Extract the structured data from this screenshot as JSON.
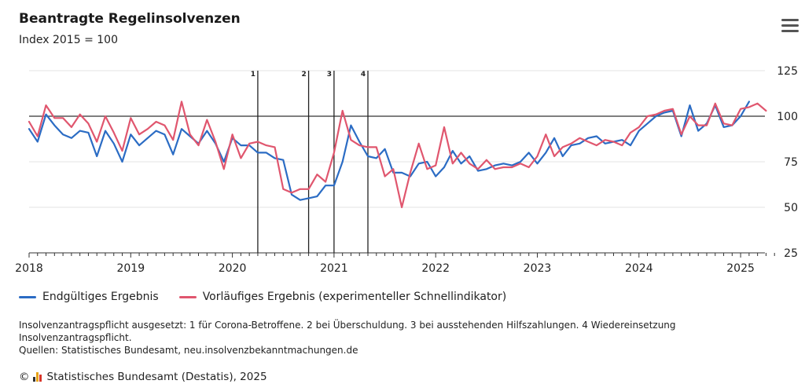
{
  "header": {
    "title": "Beantragte Regelinsolvenzen",
    "subtitle": "Index 2015 = 100",
    "menu_icon": "hamburger-menu-icon"
  },
  "colors": {
    "blue": "#2b6cc4",
    "red": "#e0566e",
    "logo_bars": [
      "#333333",
      "#e8a317",
      "#d9362b"
    ]
  },
  "chart_data": {
    "type": "line",
    "title": "Beantragte Regelinsolvenzen",
    "subtitle": "Index 2015 = 100",
    "xlabel": "",
    "ylabel": "",
    "x_start": "2018-01",
    "x_tick_labels": [
      "2018",
      "2019",
      "2020",
      "2021",
      "2022",
      "2023",
      "2024",
      "2025"
    ],
    "y_tick_labels": [
      "25",
      "50",
      "75",
      "100",
      "125"
    ],
    "y_ticks": [
      25,
      50,
      75,
      100,
      125
    ],
    "ylim": [
      25,
      125
    ],
    "reference_line": 100,
    "grid": true,
    "events": [
      {
        "label": "1",
        "month": "2020-04"
      },
      {
        "label": "2",
        "month": "2020-10"
      },
      {
        "label": "3",
        "month": "2021-01"
      },
      {
        "label": "4",
        "month": "2021-05"
      }
    ],
    "series": [
      {
        "name": "Endgültiges Ergebnis",
        "color": "#2b6cc4",
        "values": [
          93,
          86,
          101,
          95,
          90,
          88,
          92,
          91,
          78,
          92,
          85,
          75,
          90,
          84,
          88,
          92,
          90,
          79,
          93,
          89,
          85,
          92,
          85,
          75,
          88,
          84,
          84,
          80,
          80,
          77,
          76,
          57,
          54,
          55,
          56,
          62,
          62,
          75,
          95,
          86,
          78,
          77,
          82,
          69,
          69,
          67,
          74,
          75,
          67,
          72,
          81,
          74,
          78,
          70,
          71,
          73,
          74,
          73,
          75,
          80,
          74,
          80,
          88,
          78,
          84,
          85,
          88,
          89,
          85,
          86,
          87,
          84,
          92,
          96,
          100,
          102,
          103,
          89,
          106,
          92,
          96,
          106,
          94,
          95,
          100,
          108
        ]
      },
      {
        "name": "Vorläufiges Ergebnis (experimenteller Schnellindikator)",
        "color": "#e0566e",
        "values": [
          97,
          89,
          106,
          99,
          99,
          94,
          101,
          96,
          86,
          100,
          91,
          81,
          99,
          90,
          93,
          97,
          95,
          87,
          108,
          90,
          84,
          98,
          86,
          71,
          90,
          77,
          85,
          86,
          84,
          83,
          60,
          58,
          60,
          60,
          68,
          64,
          80,
          103,
          87,
          84,
          83,
          83,
          67,
          71,
          50,
          69,
          85,
          71,
          73,
          94,
          74,
          80,
          74,
          71,
          76,
          71,
          72,
          72,
          74,
          72,
          78,
          90,
          78,
          83,
          85,
          88,
          86,
          84,
          87,
          86,
          84,
          91,
          94,
          100,
          101,
          103,
          104,
          90,
          100,
          95,
          95,
          107,
          96,
          95,
          104,
          105,
          107,
          103
        ]
      }
    ]
  },
  "legend": {
    "items": [
      {
        "label": "Endgültiges Ergebnis",
        "color": "#2b6cc4"
      },
      {
        "label": "Vorläufiges Ergebnis (experimenteller Schnellindikator)",
        "color": "#e0566e"
      }
    ]
  },
  "notes": {
    "line1": "Insolvenzantragspflicht ausgesetzt: 1 für Corona-Betroffene. 2 bei Überschuldung. 3 bei ausstehenden Hilfszahlungen. 4 Wiedereinsetzung Insolvenzantragspflicht.",
    "line2": "Quellen: Statistisches Bundesamt, neu.insolvenzbekanntmachungen.de"
  },
  "credit": {
    "copyright": "©",
    "text": "Statistisches Bundesamt (Destatis), 2025"
  }
}
